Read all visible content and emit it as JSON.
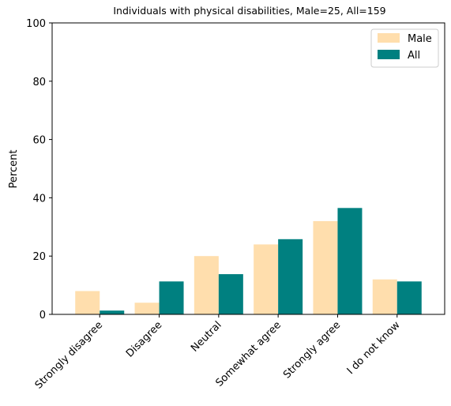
{
  "chart_data": {
    "type": "bar",
    "title": "Individuals with physical disabilities, Male=25, All=159",
    "xlabel": "",
    "ylabel": "Percent",
    "ylim": [
      0,
      100
    ],
    "yticks": [
      0,
      20,
      40,
      60,
      80,
      100
    ],
    "categories": [
      "Strongly disagree",
      "Disagree",
      "Neutral",
      "Somewhat agree",
      "Strongly agree",
      "I do not know"
    ],
    "series": [
      {
        "name": "Male",
        "color": "#ffdead",
        "values": [
          8.0,
          4.0,
          20.0,
          24.0,
          32.0,
          12.0
        ]
      },
      {
        "name": "All",
        "color": "#008080",
        "values": [
          1.3,
          11.3,
          13.8,
          25.8,
          36.5,
          11.3
        ]
      }
    ],
    "legend": "top-right",
    "grid": false
  }
}
